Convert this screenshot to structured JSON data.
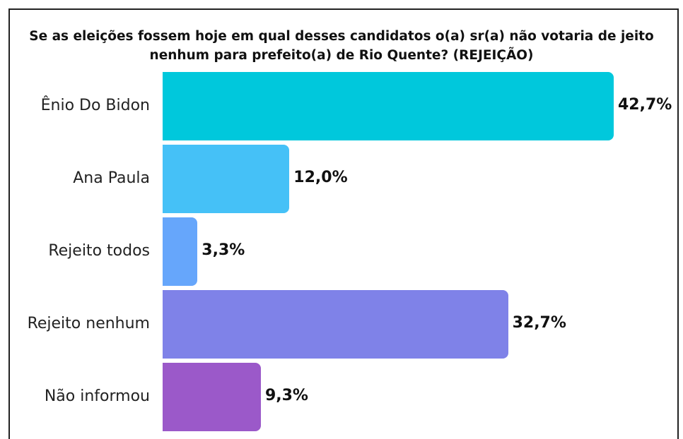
{
  "chart_data": {
    "type": "bar",
    "orientation": "horizontal",
    "title": "Se as eleições fossem hoje em qual desses candidatos o(a) sr(a) não votaria de jeito nenhum para prefeito(a) de Rio Quente? (REJEIÇÃO)",
    "categories": [
      "Ênio Do Bidon",
      "Ana Paula",
      "Rejeito todos",
      "Rejeito nenhum",
      "Não informou"
    ],
    "values": [
      42.7,
      12.0,
      3.3,
      32.7,
      9.3
    ],
    "value_labels": [
      "42,7%",
      "12,0%",
      "3,3%",
      "32,7%",
      "9,3%"
    ],
    "colors": [
      "#00c8dc",
      "#45c1f7",
      "#66a6fb",
      "#7f82e8",
      "#9b59c9"
    ]
  }
}
